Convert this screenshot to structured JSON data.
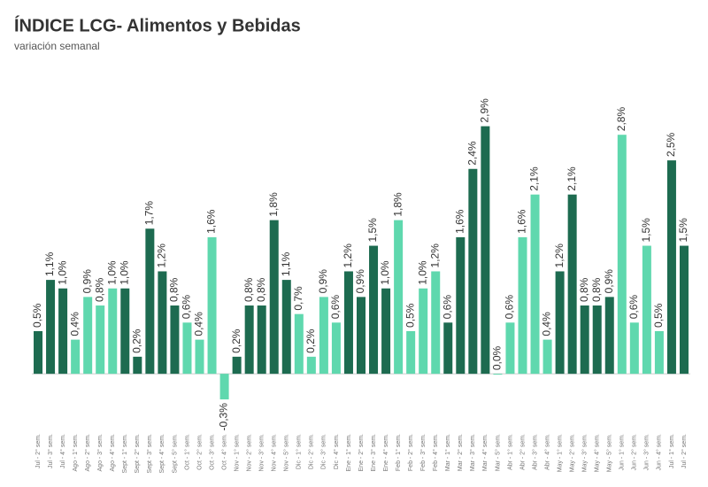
{
  "chart_data": {
    "type": "bar",
    "title": "ÍNDICE LCG- Alimentos y Bebidas",
    "subtitle": "variación semanal",
    "categories": [
      "Jul - 2° sem.",
      "Jul - 3° sem.",
      "Jul - 4° sem.",
      "Ago - 1° sem.",
      "Ago - 2° sem.",
      "Ago - 3° sem.",
      "Ago - 4° sem.",
      "Sept - 1° sem.",
      "Sept - 2° sem.",
      "Sept - 3° sem.",
      "Sept - 4° sem.",
      "Sept - 5° sem.",
      "Oct - 1° sem.",
      "Oct - 2° sem.",
      "Oct - 3° sem.",
      "Oct - 4° sem.",
      "Nov - 1° sem.",
      "Nov - 2° sem.",
      "Nov - 3° sem.",
      "Nov - 4° sem.",
      "Nov - 5° sem.",
      "Dic - 1° sem.",
      "Dic - 2° sem.",
      "Dic - 3° sem.",
      "Dic - 4° sem.",
      "Ene - 1° sem.",
      "Ene - 2° sem.",
      "Ene - 3° sem.",
      "Ene - 4° sem.",
      "Feb - 1° sem.",
      "Feb - 2° sem.",
      "Feb - 3° sem.",
      "Feb - 4° sem.",
      "Mar - 1° sem.",
      "Mar - 2° sem.",
      "Mar - 3° sem.",
      "Mar - 4° sem.",
      "Mar - 5° sem.",
      "Abr - 1° sem.",
      "Abr - 2° sem.",
      "Abr - 3° sem.",
      "Abr - 4° sem.",
      "May - 1° sem.",
      "May - 2° sem.",
      "May - 3° sem.",
      "May - 4° sem.",
      "May - 5° sem.",
      "Jun - 1° sem.",
      "Jun - 2° sem.",
      "Jun - 3° sem.",
      "Jun - 4° sem.",
      "Jul - 1° sem.",
      "Jul - 2° sem."
    ],
    "values": [
      0.5,
      1.1,
      1.0,
      0.4,
      0.9,
      0.8,
      1.0,
      1.0,
      0.2,
      1.7,
      1.2,
      0.8,
      0.6,
      0.4,
      1.6,
      -0.3,
      0.2,
      0.8,
      0.8,
      1.8,
      1.1,
      0.7,
      0.2,
      0.9,
      0.6,
      1.2,
      0.9,
      1.5,
      1.0,
      1.8,
      0.5,
      1.0,
      1.2,
      0.6,
      1.6,
      2.4,
      2.9,
      0.0,
      0.6,
      1.6,
      2.1,
      0.4,
      1.2,
      2.1,
      0.8,
      0.8,
      0.9,
      2.8,
      0.6,
      1.5,
      0.5,
      2.5,
      1.5
    ],
    "value_labels": [
      "0,5%",
      "1,1%",
      "1,0%",
      "0,4%",
      "0,9%",
      "0,8%",
      "1,0%",
      "1,0%",
      "0,2%",
      "1,7%",
      "1,2%",
      "0,8%",
      "0,6%",
      "0,4%",
      "1,6%",
      "-0,3%",
      "0,2%",
      "0,8%",
      "0,8%",
      "1,8%",
      "1,1%",
      "0,7%",
      "0,2%",
      "0,9%",
      "0,6%",
      "1,2%",
      "0,9%",
      "1,5%",
      "1,0%",
      "1,8%",
      "0,5%",
      "1,0%",
      "1,2%",
      "0,6%",
      "1,6%",
      "2,4%",
      "2,9%",
      "0,0%",
      "0,6%",
      "1,6%",
      "2,1%",
      "0,4%",
      "1,2%",
      "2,1%",
      "0,8%",
      "0,8%",
      "0,9%",
      "2,8%",
      "0,6%",
      "1,5%",
      "0,5%",
      "2,5%",
      "1,5%"
    ],
    "colors": [
      "#1d6b50",
      "#1d6b50",
      "#1d6b50",
      "#5fd8ae",
      "#5fd8ae",
      "#5fd8ae",
      "#5fd8ae",
      "#1d6b50",
      "#1d6b50",
      "#1d6b50",
      "#1d6b50",
      "#1d6b50",
      "#5fd8ae",
      "#5fd8ae",
      "#5fd8ae",
      "#5fd8ae",
      "#1d6b50",
      "#1d6b50",
      "#1d6b50",
      "#1d6b50",
      "#1d6b50",
      "#5fd8ae",
      "#5fd8ae",
      "#5fd8ae",
      "#5fd8ae",
      "#1d6b50",
      "#1d6b50",
      "#1d6b50",
      "#1d6b50",
      "#5fd8ae",
      "#5fd8ae",
      "#5fd8ae",
      "#5fd8ae",
      "#1d6b50",
      "#1d6b50",
      "#1d6b50",
      "#1d6b50",
      "#5fd8ae",
      "#5fd8ae",
      "#5fd8ae",
      "#5fd8ae",
      "#5fd8ae",
      "#1d6b50",
      "#1d6b50",
      "#1d6b50",
      "#1d6b50",
      "#1d6b50",
      "#5fd8ae",
      "#5fd8ae",
      "#5fd8ae",
      "#5fd8ae",
      "#1d6b50",
      "#1d6b50"
    ],
    "ylim": [
      -0.6,
      3.3
    ]
  }
}
